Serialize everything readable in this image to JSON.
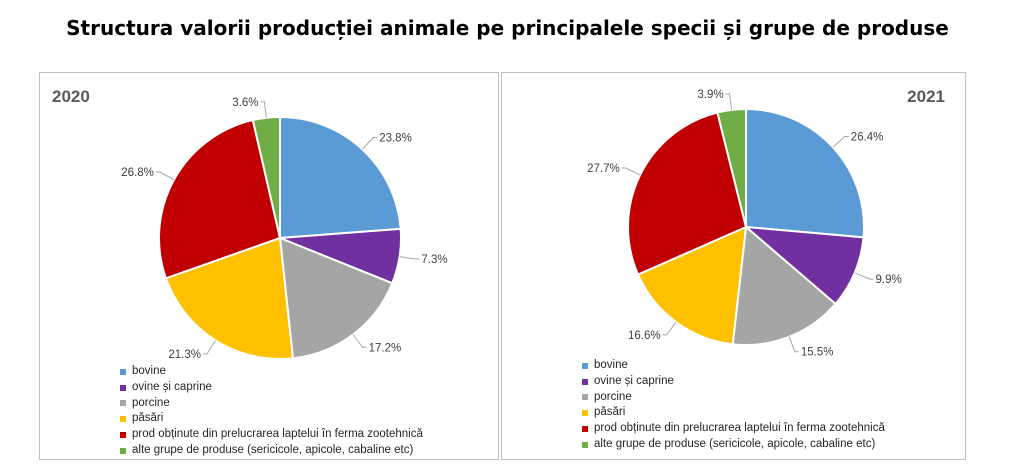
{
  "title": "Structura valorii producției animale pe principalele specii și grupe de produse",
  "colors": [
    "#5b9bd5",
    "#7030a0",
    "#a5a5a5",
    "#ffc000",
    "#c00000",
    "#70ad47"
  ],
  "chart_data": [
    {
      "type": "pie",
      "year_label": "2020",
      "categories": [
        "bovine",
        "ovine și caprine",
        "porcine",
        "păsări",
        "prod obținute din prelucrarea laptelui în ferma zootehnică",
        "alte grupe de produse (sericicole, apicole, cabaline etc)"
      ],
      "values": [
        23.8,
        7.3,
        17.2,
        21.3,
        26.8,
        3.6
      ],
      "value_labels": [
        "23.8%",
        "7.3%",
        "17.2%",
        "21.3%",
        "26.8%",
        "3.6%"
      ],
      "legend_position": "bottom-left"
    },
    {
      "type": "pie",
      "year_label": "2021",
      "categories": [
        "bovine",
        "ovine și caprine",
        "porcine",
        "păsări",
        "prod obținute din prelucrarea laptelui în ferma zootehnică",
        "alte grupe de produse (sericicole, apicole, cabaline etc)"
      ],
      "values": [
        26.4,
        9.9,
        15.5,
        16.6,
        27.7,
        3.9
      ],
      "value_labels": [
        "26.4%",
        "9.9%",
        "15.5%",
        "16.6%",
        "27.7%",
        "3.9%"
      ],
      "legend_position": "bottom-left"
    }
  ]
}
